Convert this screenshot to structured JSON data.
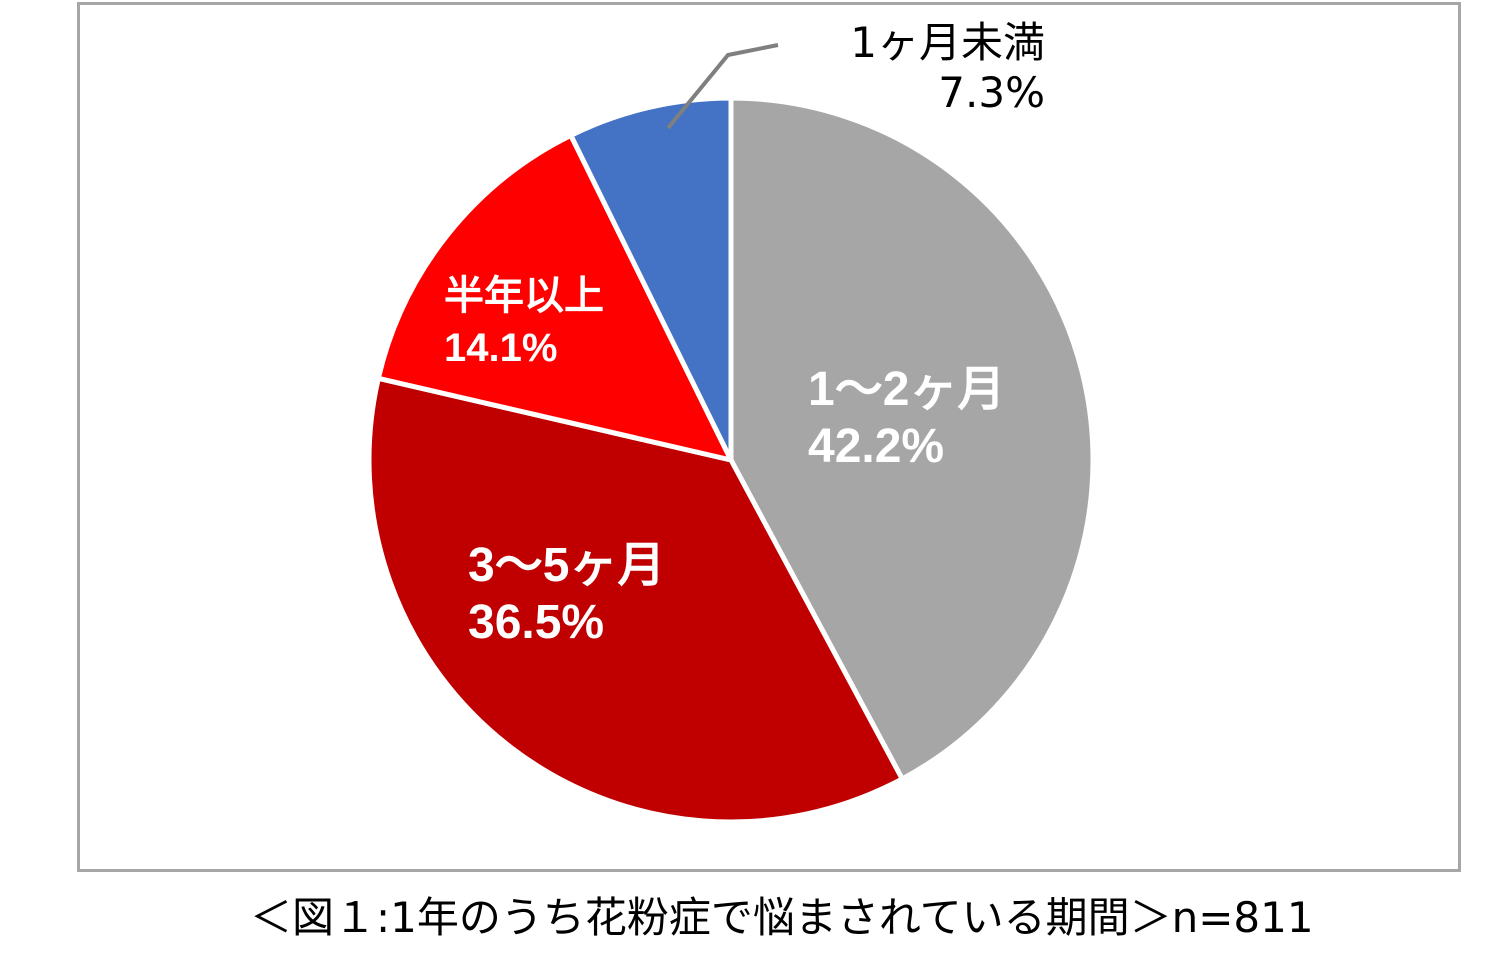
{
  "chart_data": {
    "type": "pie",
    "slices": [
      {
        "label": "1～2ヶ月",
        "value": 42.2,
        "value_text": "42.2%",
        "color": "#a6a6a6"
      },
      {
        "label": "3～5ヶ月",
        "value": 36.5,
        "value_text": "36.5%",
        "color": "#c00000"
      },
      {
        "label": "半年以上",
        "value": 14.1,
        "value_text": "14.1%",
        "color": "#ff0000"
      },
      {
        "label": "1ヶ月未満",
        "value": 7.3,
        "value_text": "7.3%",
        "color": "#4472c4"
      }
    ],
    "start_angle_deg": 0,
    "direction": "clockwise",
    "legend": "none"
  },
  "caption": "＜図１:1年のうち花粉症で悩まされている期間＞n=811"
}
